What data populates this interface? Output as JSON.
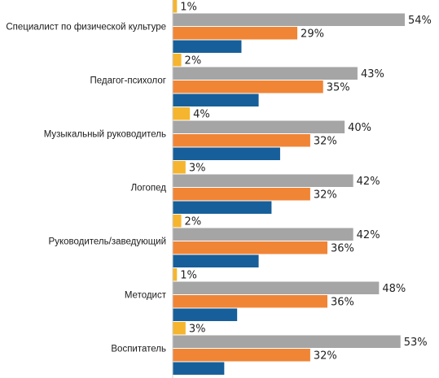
{
  "chart_data": {
    "type": "bar",
    "orientation": "horizontal",
    "categories": [
      "Специалист по физической культуре",
      "Педагог-психолог",
      "Музыкальный  руководитель",
      "Логопед",
      "Руководитель/заведующий",
      "Методист",
      "Воспитатель"
    ],
    "series": [
      {
        "color": "#F6B52E",
        "values": [
          1,
          2,
          4,
          3,
          2,
          1,
          3
        ],
        "value_labels": [
          "1%",
          "2%",
          "4%",
          "3%",
          "2%",
          "1%",
          "3%"
        ]
      },
      {
        "color": "#A5A5A5",
        "values": [
          54,
          43,
          40,
          42,
          42,
          48,
          53
        ],
        "value_labels": [
          "54%",
          "43%",
          "40%",
          "42%",
          "42%",
          "48%",
          "53%"
        ]
      },
      {
        "color": "#F08536",
        "values": [
          29,
          35,
          32,
          32,
          36,
          36,
          32
        ],
        "value_labels": [
          "29%",
          "35%",
          "32%",
          "32%",
          "36%",
          "36%",
          "32%"
        ]
      },
      {
        "color": "#175F9A",
        "values": [
          16,
          20,
          25,
          23,
          20,
          15,
          12
        ],
        "value_labels": [
          "",
          "",
          "",
          "",
          "",
          "",
          ""
        ]
      }
    ],
    "xlim": [
      0,
      60
    ],
    "grid": false,
    "legend": "none"
  }
}
